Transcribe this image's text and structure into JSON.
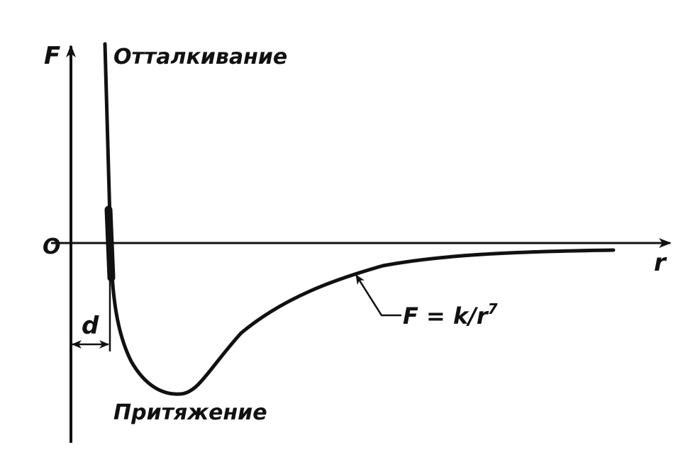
{
  "figure": {
    "axis_y_label": "F",
    "axis_x_label": "r",
    "origin_label": "O",
    "top_label": "Отталкивание",
    "bottom_label": "Притяжение",
    "distance_label": "d",
    "formula_prefix": "F = k/r",
    "formula_exponent": "7",
    "colors": {
      "ink": "#111111",
      "background": "#ffffff"
    }
  }
}
